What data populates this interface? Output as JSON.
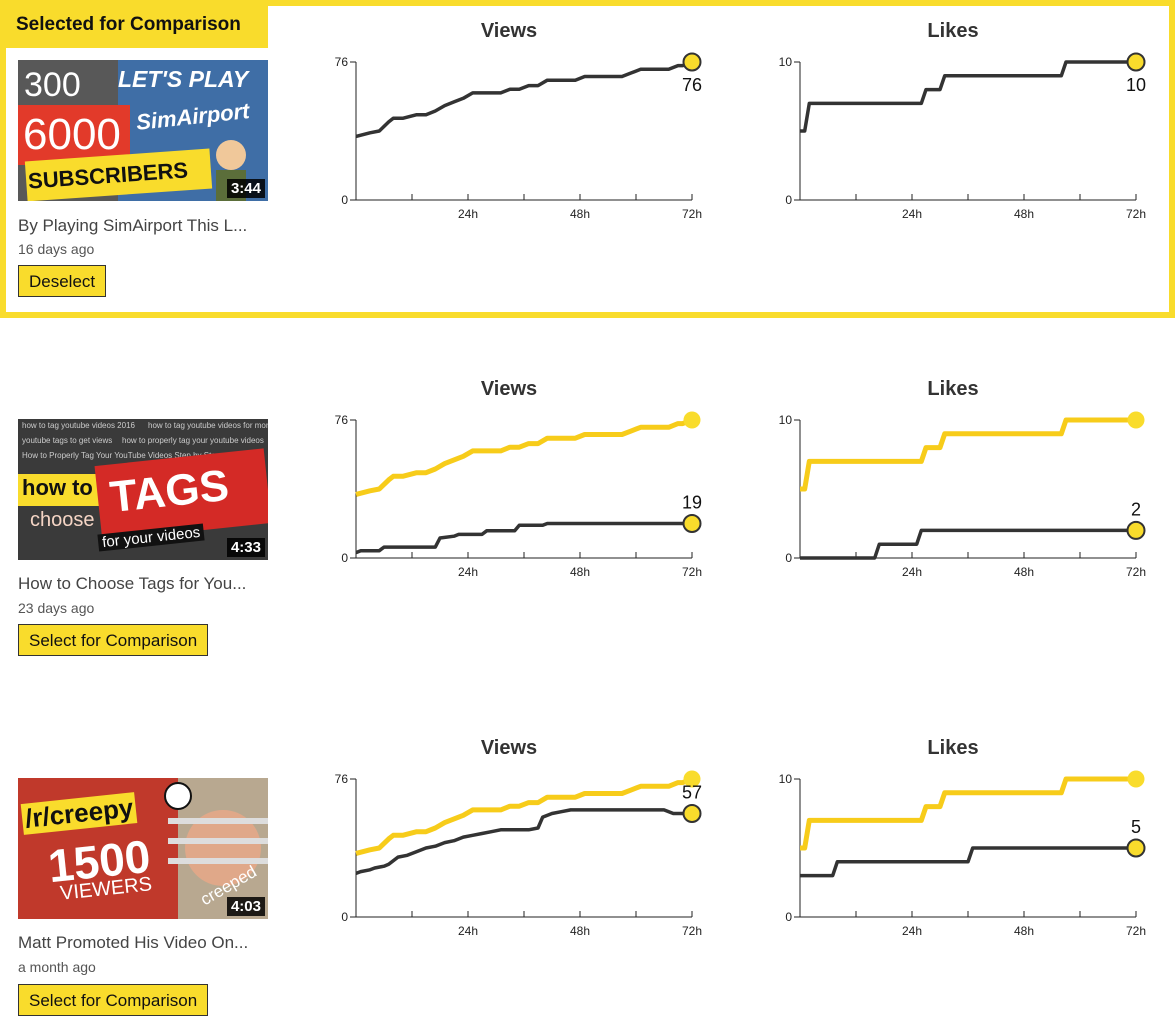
{
  "selected_label": "Selected for Comparison",
  "colors": {
    "accent": "#f9dc2c",
    "line": "#333333",
    "compare_line": "#f7cc1a"
  },
  "rows": [
    {
      "state": "selected",
      "title": "By Playing SimAirport This L...",
      "age": "16 days ago",
      "duration": "3:44",
      "button_label": "Deselect",
      "thumb_text": {
        "top": "300",
        "mid": "6000",
        "bottom": "SUBSCRIBERS",
        "tag1": "LET'S PLAY",
        "tag2": "SimAirport"
      }
    },
    {
      "state": "unselected",
      "title": "How to Choose Tags for You...",
      "age": "23 days ago",
      "duration": "4:33",
      "button_label": "Select for Comparison",
      "thumb_text": {
        "l1": "how to",
        "l2": "choose",
        "l3": "TAGS",
        "l4": "for your videos",
        "bg1": "how to tag youtube videos 2016",
        "bg2": "how to tag youtube videos for more views",
        "bg3": "youtube tags to get views",
        "bg4": "how to properly tag your youtube videos",
        "bg5": "How to Properly Tag Your YouTube Videos Step by Step"
      }
    },
    {
      "state": "unselected",
      "title": "Matt Promoted His Video On...",
      "age": "a month ago",
      "duration": "4:03",
      "button_label": "Select for Comparison",
      "thumb_text": {
        "l1": "/r/creepy",
        "l2": "1500",
        "l3": "VIEWERS",
        "l4": "creeped"
      }
    }
  ],
  "chart_data": [
    {
      "type": "line",
      "title": "Views",
      "row": 0,
      "xlabel": "",
      "ylabel": "",
      "xlim": [
        0,
        72
      ],
      "ylim": [
        0,
        76
      ],
      "xticks": [
        "24h",
        "48h",
        "72h"
      ],
      "yticks": [
        "0",
        "76"
      ],
      "end_label": "76",
      "series": [
        {
          "role": "selected",
          "x": [
            0,
            3,
            5,
            7,
            8,
            10,
            13,
            15,
            17,
            19,
            21,
            23,
            25,
            27,
            29,
            31,
            33,
            35,
            37,
            39,
            41,
            43,
            45,
            47,
            49,
            51,
            53,
            55,
            57,
            59,
            61,
            63,
            65,
            67,
            69,
            70,
            72
          ],
          "y": [
            35,
            37,
            38,
            43,
            45,
            45,
            47,
            47,
            49,
            52,
            54,
            56,
            59,
            59,
            59,
            59,
            61,
            61,
            63,
            63,
            66,
            66,
            66,
            66,
            68,
            68,
            68,
            68,
            68,
            70,
            72,
            72,
            72,
            72,
            74,
            74,
            76
          ]
        }
      ]
    },
    {
      "type": "line",
      "title": "Likes",
      "row": 0,
      "xlabel": "",
      "ylabel": "",
      "xlim": [
        0,
        72
      ],
      "ylim": [
        0,
        10
      ],
      "xticks": [
        "24h",
        "48h",
        "72h"
      ],
      "yticks": [
        "0",
        "10"
      ],
      "end_label": "10",
      "series": [
        {
          "role": "selected",
          "x": [
            0,
            1,
            2,
            26,
            27,
            30,
            31,
            56,
            57,
            72
          ],
          "y": [
            5,
            5,
            7,
            7,
            8,
            8,
            9,
            9,
            10,
            10
          ]
        }
      ]
    },
    {
      "type": "line",
      "title": "Views",
      "row": 1,
      "xlabel": "",
      "ylabel": "",
      "xlim": [
        0,
        72
      ],
      "ylim": [
        0,
        76
      ],
      "xticks": [
        "24h",
        "48h",
        "72h"
      ],
      "yticks": [
        "0",
        "76"
      ],
      "end_label": "19",
      "series": [
        {
          "role": "comparison",
          "x": [
            0,
            3,
            5,
            7,
            8,
            10,
            13,
            15,
            17,
            19,
            21,
            23,
            25,
            27,
            29,
            31,
            33,
            35,
            37,
            39,
            41,
            43,
            45,
            47,
            49,
            51,
            53,
            55,
            57,
            59,
            61,
            63,
            65,
            67,
            69,
            70,
            72
          ],
          "y": [
            35,
            37,
            38,
            43,
            45,
            45,
            47,
            47,
            49,
            52,
            54,
            56,
            59,
            59,
            59,
            59,
            61,
            61,
            63,
            63,
            66,
            66,
            66,
            66,
            68,
            68,
            68,
            68,
            68,
            70,
            72,
            72,
            72,
            72,
            74,
            74,
            76
          ]
        },
        {
          "role": "video",
          "x": [
            0,
            1,
            5,
            6,
            15,
            17,
            18,
            21,
            22,
            27,
            28,
            34,
            35,
            40,
            41,
            72
          ],
          "y": [
            3,
            4,
            4,
            6,
            6,
            6,
            11,
            12,
            13,
            13,
            15,
            15,
            18,
            18,
            19,
            19
          ]
        }
      ]
    },
    {
      "type": "line",
      "title": "Likes",
      "row": 1,
      "xlabel": "",
      "ylabel": "",
      "xlim": [
        0,
        72
      ],
      "ylim": [
        0,
        10
      ],
      "xticks": [
        "24h",
        "48h",
        "72h"
      ],
      "yticks": [
        "0",
        "10"
      ],
      "end_label": "2",
      "series": [
        {
          "role": "comparison",
          "x": [
            0,
            1,
            2,
            26,
            27,
            30,
            31,
            56,
            57,
            72
          ],
          "y": [
            5,
            5,
            7,
            7,
            8,
            8,
            9,
            9,
            10,
            10
          ]
        },
        {
          "role": "video",
          "x": [
            0,
            16,
            17,
            25,
            26,
            72
          ],
          "y": [
            0,
            0,
            1,
            1,
            2,
            2
          ]
        }
      ]
    },
    {
      "type": "line",
      "title": "Views",
      "row": 2,
      "xlabel": "",
      "ylabel": "",
      "xlim": [
        0,
        72
      ],
      "ylim": [
        0,
        76
      ],
      "xticks": [
        "24h",
        "48h",
        "72h"
      ],
      "yticks": [
        "0",
        "76"
      ],
      "end_label": "57",
      "series": [
        {
          "role": "comparison",
          "x": [
            0,
            3,
            5,
            7,
            8,
            10,
            13,
            15,
            17,
            19,
            21,
            23,
            25,
            27,
            29,
            31,
            33,
            35,
            37,
            39,
            41,
            43,
            45,
            47,
            49,
            51,
            53,
            55,
            57,
            59,
            61,
            63,
            65,
            67,
            69,
            70,
            72
          ],
          "y": [
            35,
            37,
            38,
            43,
            45,
            45,
            47,
            47,
            49,
            52,
            54,
            56,
            59,
            59,
            59,
            59,
            61,
            61,
            63,
            63,
            66,
            66,
            66,
            66,
            68,
            68,
            68,
            68,
            68,
            70,
            72,
            72,
            72,
            72,
            74,
            74,
            76
          ]
        },
        {
          "role": "video",
          "x": [
            0,
            1,
            3,
            4,
            6,
            7,
            9,
            11,
            13,
            15,
            17,
            19,
            21,
            23,
            25,
            27,
            29,
            31,
            33,
            35,
            37,
            39,
            40,
            42,
            44,
            46,
            48,
            50,
            66,
            68,
            70,
            72
          ],
          "y": [
            24,
            25,
            26,
            27,
            28,
            29,
            33,
            34,
            36,
            38,
            39,
            41,
            42,
            44,
            45,
            46,
            47,
            48,
            48,
            48,
            48,
            49,
            55,
            57,
            58,
            59,
            59,
            59,
            59,
            57,
            57,
            57
          ]
        }
      ]
    },
    {
      "type": "line",
      "title": "Likes",
      "row": 2,
      "xlabel": "",
      "ylabel": "",
      "xlim": [
        0,
        72
      ],
      "ylim": [
        0,
        10
      ],
      "xticks": [
        "24h",
        "48h",
        "72h"
      ],
      "yticks": [
        "0",
        "10"
      ],
      "end_label": "5",
      "series": [
        {
          "role": "comparison",
          "x": [
            0,
            1,
            2,
            26,
            27,
            30,
            31,
            56,
            57,
            72
          ],
          "y": [
            5,
            5,
            7,
            7,
            8,
            8,
            9,
            9,
            10,
            10
          ]
        },
        {
          "role": "video",
          "x": [
            0,
            7,
            8,
            36,
            37,
            72
          ],
          "y": [
            3,
            3,
            4,
            4,
            5,
            5
          ]
        }
      ]
    }
  ]
}
